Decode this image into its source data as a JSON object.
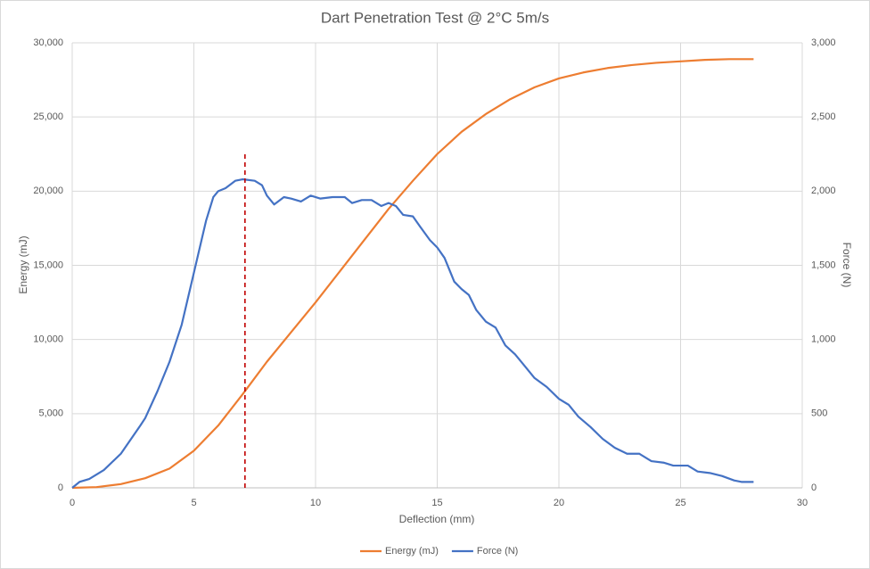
{
  "chart_data": {
    "type": "line",
    "title": "Dart Penetration Test @ 2°C 5m/s",
    "x_label": "Deflection (mm)",
    "y_label": "Energy (mJ)",
    "y2_label": "Force (N)",
    "xlim": [
      0,
      30
    ],
    "xticks": [
      0,
      5,
      10,
      15,
      20,
      25,
      30
    ],
    "ylim": [
      0,
      30000
    ],
    "yticks": [
      0,
      {
        "value": 5000,
        "label": "5,000"
      },
      {
        "value": 10000,
        "label": "10,000"
      },
      {
        "value": 15000,
        "label": "15,000"
      },
      {
        "value": 20000,
        "label": "20,000"
      },
      {
        "value": 25000,
        "label": "25,000"
      },
      {
        "value": 30000,
        "label": "30,000"
      }
    ],
    "y2lim": [
      0,
      3000
    ],
    "y2ticks": [
      0,
      500,
      {
        "value": 1000,
        "label": "1,000"
      },
      {
        "value": 1500,
        "label": "1,500"
      },
      {
        "value": 2000,
        "label": "2,000"
      },
      {
        "value": 2500,
        "label": "2,500"
      },
      {
        "value": 3000,
        "label": "3,000"
      }
    ],
    "grid": true,
    "legend": "bottom",
    "series": [
      {
        "name": "Energy (mJ)",
        "color": "#ed7d31",
        "x": [
          0,
          1,
          2,
          3,
          4,
          5,
          6,
          7,
          8,
          9,
          10,
          11,
          12,
          13,
          14,
          15,
          16,
          17,
          18,
          19,
          20,
          21,
          22,
          23,
          24,
          25,
          26,
          27,
          28
        ],
        "values": [
          0,
          50,
          250,
          650,
          1300,
          2500,
          4200,
          6300,
          8500,
          10500,
          12500,
          14600,
          16700,
          18800,
          20700,
          22500,
          24000,
          25200,
          26200,
          27000,
          27600,
          28000,
          28300,
          28500,
          28650,
          28750,
          28850,
          28900,
          28900
        ]
      },
      {
        "name": "Force (N)",
        "color": "#4472c4",
        "axis": "y2",
        "x": [
          0,
          0.3,
          0.7,
          1.3,
          2,
          2.8,
          3,
          3.5,
          4,
          4.5,
          5,
          5.5,
          5.8,
          6,
          6.3,
          6.7,
          7,
          7.5,
          7.8,
          8,
          8.3,
          8.7,
          9,
          9.4,
          9.8,
          10.2,
          10.7,
          11.2,
          11.5,
          11.9,
          12.3,
          12.7,
          13,
          13.3,
          13.6,
          14,
          14.3,
          14.7,
          15,
          15.3,
          15.7,
          16,
          16.3,
          16.6,
          17,
          17.4,
          17.8,
          18.2,
          18.6,
          19,
          19.5,
          20,
          20.4,
          20.8,
          21.3,
          21.8,
          22.3,
          22.8,
          23.3,
          23.8,
          24.3,
          24.7,
          25.3,
          25.7,
          26.2,
          26.7,
          27.2,
          27.5,
          28
        ],
        "values": [
          0,
          40,
          60,
          120,
          230,
          420,
          470,
          650,
          850,
          1100,
          1450,
          1800,
          1960,
          2000,
          2020,
          2070,
          2080,
          2070,
          2040,
          1970,
          1910,
          1960,
          1950,
          1930,
          1970,
          1950,
          1960,
          1960,
          1920,
          1940,
          1940,
          1900,
          1920,
          1900,
          1840,
          1830,
          1760,
          1670,
          1620,
          1550,
          1390,
          1340,
          1300,
          1200,
          1120,
          1080,
          960,
          900,
          820,
          740,
          680,
          600,
          560,
          480,
          410,
          330,
          270,
          230,
          230,
          180,
          170,
          150,
          150,
          110,
          100,
          80,
          50,
          40,
          40
        ]
      }
    ],
    "vline": {
      "x": 7.1,
      "y": [
        0,
        22600
      ],
      "color": "#c00000"
    }
  }
}
